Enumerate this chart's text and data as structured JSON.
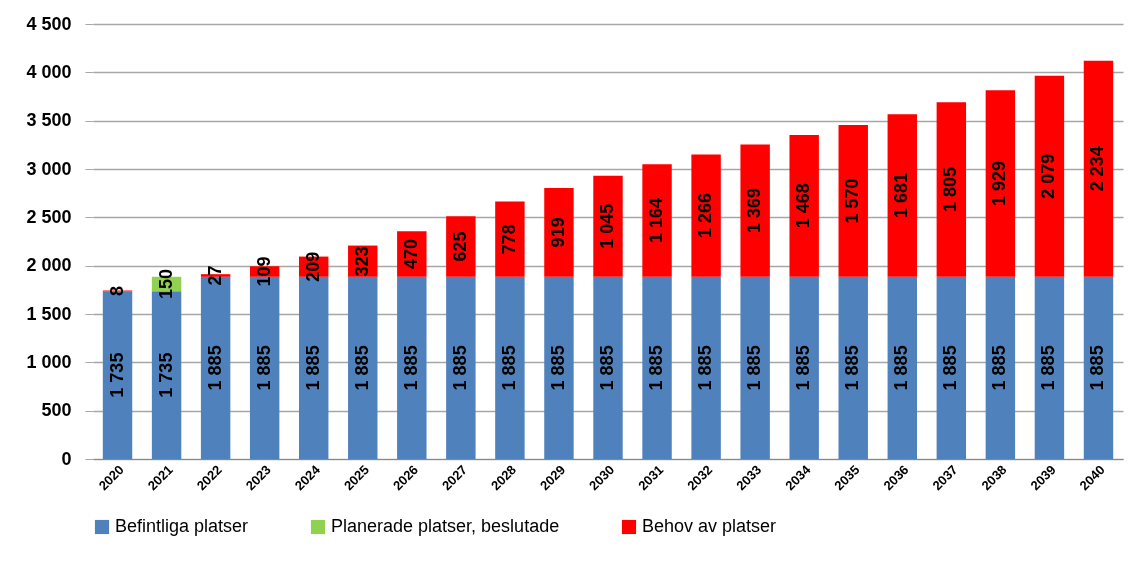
{
  "chart_data": {
    "type": "bar",
    "stacked": true,
    "categories": [
      "2020",
      "2021",
      "2022",
      "2023",
      "2024",
      "2025",
      "2026",
      "2027",
      "2028",
      "2029",
      "2030",
      "2031",
      "2032",
      "2033",
      "2034",
      "2035",
      "2036",
      "2037",
      "2038",
      "2039",
      "2040"
    ],
    "series": [
      {
        "name": "Befintliga platser",
        "color": "#4f81bd",
        "values": [
          1735,
          1735,
          1885,
          1885,
          1885,
          1885,
          1885,
          1885,
          1885,
          1885,
          1885,
          1885,
          1885,
          1885,
          1885,
          1885,
          1885,
          1885,
          1885,
          1885,
          1885
        ],
        "value_labels": [
          "1 735",
          "1 735",
          "1 885",
          "1 885",
          "1 885",
          "1 885",
          "1 885",
          "1 885",
          "1 885",
          "1 885",
          "1 885",
          "1 885",
          "1 885",
          "1 885",
          "1 885",
          "1 885",
          "1 885",
          "1 885",
          "1 885",
          "1 885",
          "1 885"
        ]
      },
      {
        "name": "Planerade platser, beslutade",
        "color": "#92d050",
        "values": [
          null,
          150,
          null,
          null,
          null,
          null,
          null,
          null,
          null,
          null,
          null,
          null,
          null,
          null,
          null,
          null,
          null,
          null,
          null,
          null,
          null
        ],
        "value_labels": [
          null,
          "150",
          null,
          null,
          null,
          null,
          null,
          null,
          null,
          null,
          null,
          null,
          null,
          null,
          null,
          null,
          null,
          null,
          null,
          null,
          null
        ]
      },
      {
        "name": "Behov av platser",
        "color": "#ff0000",
        "values": [
          8,
          null,
          27,
          109,
          209,
          323,
          470,
          625,
          778,
          919,
          1045,
          1164,
          1266,
          1369,
          1468,
          1570,
          1681,
          1805,
          1929,
          2079,
          2234
        ],
        "value_labels": [
          "8",
          null,
          "27",
          "109",
          "209",
          "323",
          "470",
          "625",
          "778",
          "919",
          "1 045",
          "1 164",
          "1 266",
          "1 369",
          "1 468",
          "1 570",
          "1 681",
          "1 805",
          "1 929",
          "2 079",
          "2 234"
        ]
      }
    ],
    "ylim": [
      0,
      4500
    ],
    "yticks": [
      0,
      500,
      {
        "value": 1000,
        "label": "1 000"
      },
      {
        "value": 1500,
        "label": "1 500"
      },
      {
        "value": 2000,
        "label": "2 000"
      },
      {
        "value": 2500,
        "label": "2 500"
      },
      {
        "value": 3000,
        "label": "3 000"
      },
      {
        "value": 3500,
        "label": "3 500"
      },
      {
        "value": 4000,
        "label": "4 000"
      },
      {
        "value": 4500,
        "label": "4 500"
      }
    ],
    "grid": "y",
    "legend": "bottom"
  }
}
